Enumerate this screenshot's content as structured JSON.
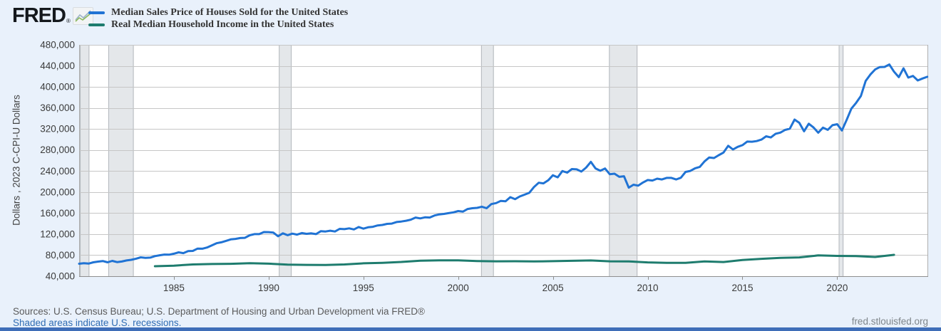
{
  "header": {
    "logo_text": "FRED",
    "logo_reg": "®"
  },
  "footer": {
    "sources": "Sources: U.S. Census Bureau; U.S. Department of Housing and Urban Development via FRED®",
    "recession_note": "Shaded areas indicate U.S. recessions.",
    "site": "fred.stlouisfed.org"
  },
  "colors": {
    "background": "#e9f1fb",
    "plot_background": "#ffffff",
    "gridline": "#c6c6c6",
    "plot_border": "#aeaeae",
    "axis_line": "#8e8e8e",
    "recession_fill": "#e4e7ea",
    "recession_edge": "#b2b7bc",
    "tick_text": "#3b3b3b",
    "series_blue": "#2073d4",
    "series_green": "#1e7c6e",
    "link_blue": "#2f6cb3",
    "bottom_bar": "#3f6eb8"
  },
  "chart_data": {
    "type": "line",
    "title": "",
    "xlabel": "",
    "ylabel": "Dollars , 2023 C-CPI-U Dollars",
    "xlim": [
      1980,
      2024.8
    ],
    "ylim": [
      40000,
      480000
    ],
    "grid": "horizontal",
    "legend_position": "top-left",
    "y_ticks": {
      "values": [
        40000,
        80000,
        120000,
        160000,
        200000,
        240000,
        280000,
        320000,
        360000,
        400000,
        440000,
        480000
      ],
      "labels": [
        "40,000",
        "80,000",
        "120,000",
        "160,000",
        "200,000",
        "240,000",
        "280,000",
        "320,000",
        "360,000",
        "400,000",
        "440,000",
        "480,000"
      ]
    },
    "x_ticks": {
      "values": [
        1985,
        1990,
        1995,
        2000,
        2005,
        2010,
        2015,
        2020
      ],
      "labels": [
        "1985",
        "1990",
        "1995",
        "2000",
        "2005",
        "2010",
        "2015",
        "2020"
      ]
    },
    "recessions": [
      [
        1980.04,
        1980.54
      ],
      [
        1981.54,
        1982.88
      ],
      [
        1990.54,
        1991.21
      ],
      [
        2001.21,
        2001.88
      ],
      [
        2007.96,
        2009.46
      ],
      [
        2020.08,
        2020.33
      ]
    ],
    "series": [
      {
        "name": "Median Sales Price of Houses Sold for the United States",
        "color": "#2073d4",
        "units": "Dollars",
        "frequency": "quarterly",
        "start": 1980.0,
        "step": 0.25,
        "values": [
          63700,
          64600,
          64000,
          66400,
          67800,
          68800,
          66400,
          69100,
          66800,
          67900,
          69900,
          71200,
          73300,
          75900,
          74900,
          75300,
          78200,
          79800,
          81100,
          80900,
          82800,
          85400,
          83900,
          87800,
          88000,
          92500,
          92300,
          94500,
          98600,
          102700,
          104500,
          107200,
          110000,
          111000,
          112500,
          113000,
          117800,
          120000,
          120000,
          124000,
          123800,
          122900,
          115900,
          121500,
          118000,
          121000,
          119000,
          122000,
          120500,
          121500,
          120000,
          125500,
          125000,
          126500,
          125000,
          130000,
          129500,
          131000,
          129000,
          133500,
          130500,
          133000,
          134000,
          136500,
          137500,
          139500,
          140000,
          143000,
          144000,
          145500,
          147500,
          151500,
          150000,
          152000,
          151500,
          155500,
          157500,
          158500,
          160000,
          161500,
          163900,
          162800,
          167800,
          169300,
          170000,
          172100,
          169300,
          177200,
          179000,
          183200,
          182500,
          190300,
          186500,
          191600,
          195000,
          198500,
          209500,
          217800,
          216500,
          222300,
          232000,
          228000,
          240000,
          237000,
          243800,
          243200,
          239000,
          246500,
          257400,
          245000,
          240500,
          244900,
          233900,
          235000,
          229000,
          230100,
          208400,
          214000,
          212200,
          218100,
          222900,
          221900,
          225500,
          224000,
          226900,
          227000,
          224000,
          227200,
          238400,
          240200,
          245200,
          248000,
          258400,
          265800,
          264800,
          270200,
          275200,
          288000,
          281000,
          286000,
          289200,
          296000,
          295800,
          297000,
          299800,
          306000,
          303800,
          310900,
          313100,
          318200,
          320500,
          337900,
          331800,
          315600,
          330000,
          322800,
          313000,
          322500,
          318400,
          327100,
          329000,
          317100,
          337500,
          358700,
          369800,
          382600,
          411200,
          423600,
          433100,
          437700,
          438000,
          442600,
          429000,
          418500,
          435400,
          417700,
          420800,
          412300,
          416000,
          419200
        ]
      },
      {
        "name": "Real Median Household Income in the United States",
        "color": "#1e7c6e",
        "units": "2023 C-CPI-U Dollars",
        "frequency": "annual",
        "start": 1984,
        "step": 1,
        "values": [
          58900,
          60100,
          62300,
          63100,
          63500,
          64600,
          63800,
          62100,
          61500,
          61200,
          62300,
          64500,
          65500,
          67100,
          69500,
          70200,
          70000,
          68900,
          68300,
          68400,
          68000,
          68600,
          69200,
          69900,
          68300,
          68100,
          66300,
          65500,
          65500,
          68000,
          67000,
          70800,
          73000,
          74800,
          75800,
          79500,
          78600,
          78200,
          76500,
          80600
        ]
      }
    ]
  }
}
